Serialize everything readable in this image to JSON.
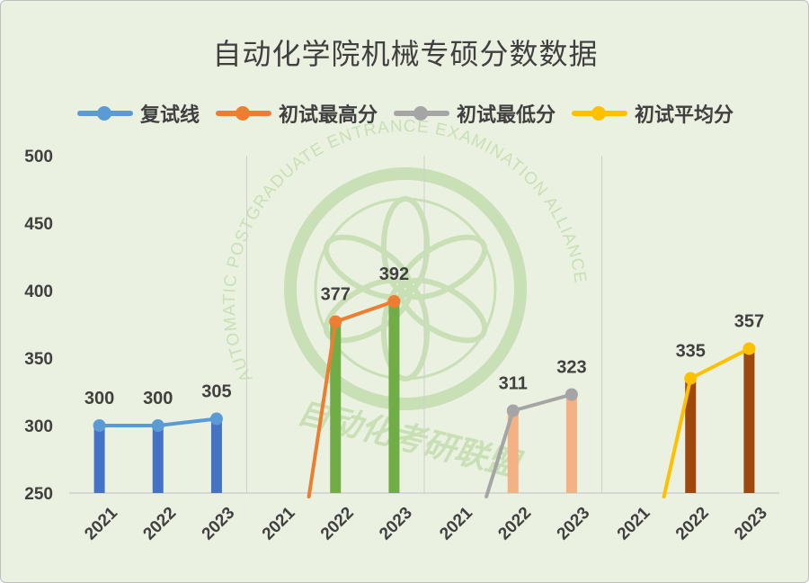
{
  "chart_data": {
    "type": "line",
    "title": "自动化学院机械专硕分数数据",
    "ylim": [
      250,
      500
    ],
    "yticks": [
      250,
      300,
      350,
      400,
      450,
      500
    ],
    "grid": "vertical panel separators",
    "legend_position": "top",
    "years": [
      "2021",
      "2022",
      "2023"
    ],
    "series": [
      {
        "name": "复试线",
        "color": "#5b9bd5",
        "bar_color": "#4472c4",
        "values": [
          300,
          300,
          305
        ]
      },
      {
        "name": "初试最高分",
        "color": "#ed7d31",
        "bar_color": "#70ad47",
        "values": [
          null,
          377,
          392
        ]
      },
      {
        "name": "初试最低分",
        "color": "#a5a5a5",
        "bar_color": "#f4b183",
        "values": [
          null,
          311,
          323
        ]
      },
      {
        "name": "初试平均分",
        "color": "#ffc000",
        "bar_color": "#9e480e",
        "values": [
          null,
          335,
          357
        ]
      }
    ]
  },
  "watermark": {
    "ring_text": "AUTOMATIC POSTGRADUATE ENTRANCE EXAMINATION ALLIANCE",
    "cn_text": "自动化考研联盟",
    "color": "#c4dcae"
  }
}
